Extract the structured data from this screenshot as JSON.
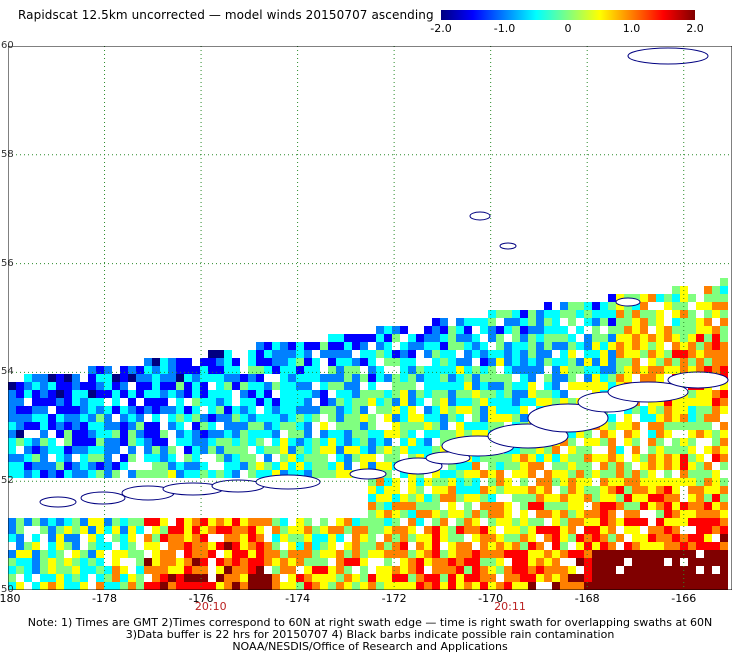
{
  "title": "Rapidscat 12.5km uncorrected — model winds 20150707 ascending",
  "colorbar": {
    "colors": [
      "#000080",
      "#0000ff",
      "#0080ff",
      "#00ffff",
      "#80ff80",
      "#ffff00",
      "#ff8000",
      "#ff0000",
      "#800000"
    ],
    "labels": [
      "-2.0",
      "-1.0",
      "0",
      "1.0",
      "2.0"
    ],
    "values": [
      -2.0,
      -1.0,
      0,
      1.0,
      2.0
    ],
    "range": [
      -2.0,
      2.0
    ]
  },
  "map": {
    "lon_range": [
      -180,
      -165
    ],
    "lat_range": [
      50,
      60
    ],
    "x_ticks": [
      "-180",
      "-178",
      "-176",
      "-174",
      "-172",
      "-170",
      "-168",
      "-166"
    ],
    "x_tick_values": [
      -180,
      -178,
      -176,
      -174,
      -172,
      -170,
      -168,
      -166
    ],
    "y_ticks": [
      "60",
      "58",
      "56",
      "54",
      "52",
      "50"
    ],
    "y_tick_values": [
      60,
      58,
      56,
      54,
      52,
      50
    ],
    "time_labels": [
      {
        "text": "20:10",
        "lon": -175.8
      },
      {
        "text": "20:11",
        "lon": -169.6
      }
    ],
    "grid": "dotted",
    "land_color": "#ffffff",
    "coast_color": "#000080"
  },
  "notes": [
    "Note: 1) Times are GMT 2)Times correspond to 60N at right swath edge — time is right swath for overlapping swaths at 60N",
    "3)Data buffer is 22 hrs for 20150707 4) Black barbs indicate possible rain contamination",
    "NOAA/NESDIS/Office of Research and Applications"
  ]
}
